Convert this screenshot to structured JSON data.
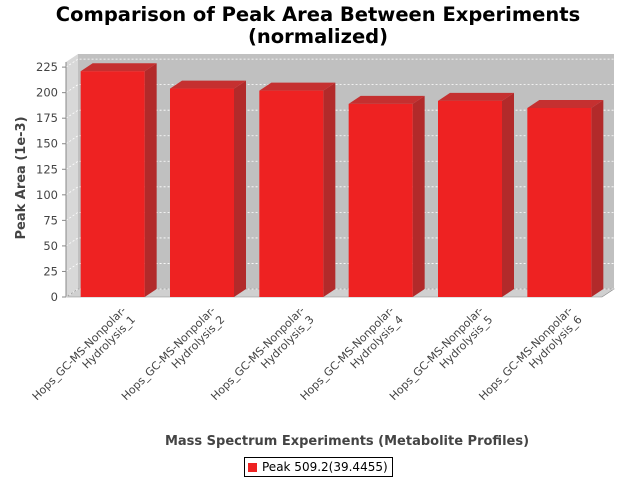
{
  "chart_data": {
    "type": "bar",
    "title": [
      "Comparison of Peak Area Between Experiments",
      "(normalized)"
    ],
    "xlabel": "Mass Spectrum Experiments (Metabolite Profiles)",
    "ylabel": "Peak Area (1e-3)",
    "categories": [
      [
        "Hops_GC-MS-Nonpolar-",
        "Hydrolysis_1"
      ],
      [
        "Hops_GC-MS-Nonpolar-",
        "Hydrolysis_2"
      ],
      [
        "Hops_GC-MS-Nonpolar-",
        "Hydrolysis_3"
      ],
      [
        "Hops_GC-MS-Nonpolar-",
        "Hydrolysis_4"
      ],
      [
        "Hops_GC-MS-Nonpolar-",
        "Hydrolysis_5"
      ],
      [
        "Hops_GC-MS-Nonpolar-",
        "Hydrolysis_6"
      ]
    ],
    "series": [
      {
        "name": "Peak 509.2(39.4455)",
        "values": [
          221,
          204,
          202,
          189,
          192,
          185
        ],
        "color": "#ee2222"
      }
    ],
    "ylim": [
      0,
      230
    ],
    "yticks": [
      0,
      25,
      50,
      75,
      100,
      125,
      150,
      175,
      200,
      225
    ],
    "grid": true,
    "style": "3d",
    "legend_position": "bottom-center",
    "plot_background": "#c0c0c0"
  }
}
